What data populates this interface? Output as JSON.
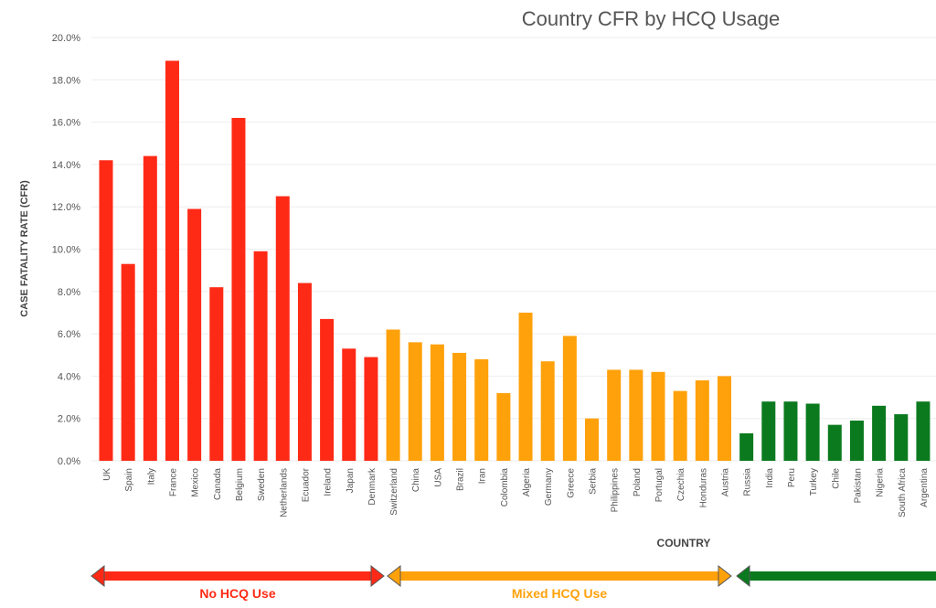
{
  "chart_data": {
    "type": "bar",
    "title": "Country CFR by HCQ Usage",
    "xlabel": "COUNTRY",
    "ylabel": "CASE FATALITY RATE (CFR)",
    "ylim": [
      0,
      20
    ],
    "yticks": [
      "0.0%",
      "2.0%",
      "4.0%",
      "6.0%",
      "8.0%",
      "10.0%",
      "12.0%",
      "14.0%",
      "16.0%",
      "18.0%",
      "20.0%"
    ],
    "grid": true,
    "categories": [
      "UK",
      "Spain",
      "Italy",
      "France",
      "Mexico",
      "Canada",
      "Belgium",
      "Sweden",
      "Netherlands",
      "Ecuador",
      "Ireland",
      "Japan",
      "Denmark",
      "Switzerland",
      "China",
      "USA",
      "Brazil",
      "Iran",
      "Colombia",
      "Algeria",
      "Germany",
      "Greece",
      "Serbia",
      "Philippines",
      "Poland",
      "Portugal",
      "Czechia",
      "Honduras",
      "Austria",
      "Russia",
      "India",
      "Peru",
      "Turkey",
      "Chile",
      "Pakistan",
      "Nigeria",
      "South Africa",
      "Argentina"
    ],
    "values": [
      14.2,
      9.3,
      14.4,
      18.9,
      11.9,
      8.2,
      16.2,
      9.9,
      12.5,
      8.4,
      6.7,
      5.3,
      4.9,
      6.2,
      5.6,
      5.5,
      5.1,
      4.8,
      3.2,
      7.0,
      4.7,
      5.9,
      2.0,
      4.3,
      4.3,
      4.2,
      3.3,
      3.8,
      4.0,
      1.3,
      2.8,
      2.8,
      2.7,
      1.7,
      1.9,
      2.6,
      2.2,
      2.8
    ],
    "groups": [
      {
        "name": "No HCQ Use",
        "start": 0,
        "end": 12,
        "color": "#ff2a16"
      },
      {
        "name": "Mixed HCQ Use",
        "start": 13,
        "end": 28,
        "color": "#ffa10a"
      },
      {
        "name": "",
        "start": 29,
        "end": 37,
        "color": "#0b7a1e"
      }
    ]
  }
}
